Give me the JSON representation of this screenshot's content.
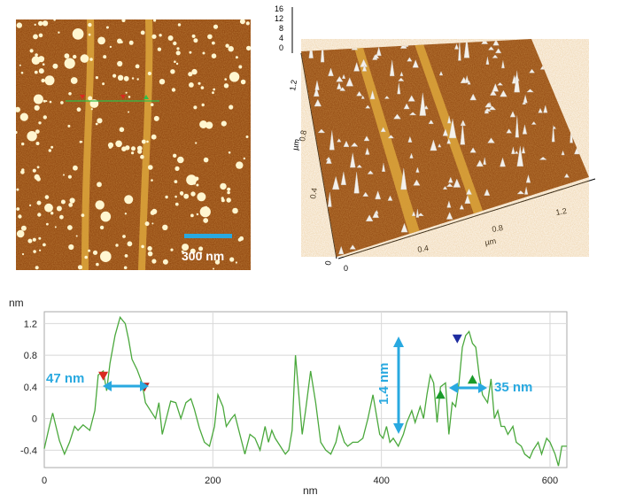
{
  "afm_2d": {
    "scale_bar_label": "300 nm",
    "colors": {
      "substrate": "#8a3e08",
      "substrate_light": "#b86a1c",
      "particle": "#fff6d0",
      "stripe": "#d9a23a",
      "scale_bar": "#29a9e0",
      "line_marker": "#2ec04a"
    }
  },
  "afm_3d": {
    "z_ticks": [
      "16",
      "12",
      "8",
      "4",
      "0"
    ],
    "left_ticks": [
      "1.2",
      "0.8",
      "0.4",
      "0"
    ],
    "left_unit": "µm",
    "bottom_ticks": [
      "0.4",
      "0.8",
      "1.2"
    ],
    "bottom_unit": "µm",
    "origin_label": "0"
  },
  "chart_data": {
    "type": "line",
    "title": "",
    "xlabel": "nm",
    "ylabel": "nm",
    "xlim": [
      0,
      620
    ],
    "ylim": [
      -0.62,
      1.35
    ],
    "x_ticks": [
      0,
      200,
      400,
      600
    ],
    "y_ticks": [
      1.2,
      0.8,
      0.4,
      0,
      -0.4
    ],
    "x_tick_labels": [
      "0",
      "200",
      "400",
      "600"
    ],
    "y_tick_labels": [
      "1.2",
      "0.8",
      "0.4",
      "0",
      "-0.4"
    ],
    "grid": true,
    "line_color": "#4aa83c",
    "series": [
      {
        "x": [
          0,
          6,
          10,
          18,
          24,
          30,
          36,
          40,
          46,
          54,
          60,
          64,
          70,
          74,
          78,
          84,
          90,
          96,
          100,
          104,
          110,
          116,
          120,
          126,
          132,
          136,
          140,
          146,
          150,
          156,
          162,
          168,
          174,
          178,
          184,
          190,
          196,
          202,
          206,
          212,
          216,
          222,
          226,
          232,
          238,
          244,
          250,
          256,
          262,
          266,
          270,
          274,
          280,
          286,
          290,
          294,
          298,
          302,
          306,
          310,
          316,
          322,
          328,
          334,
          340,
          346,
          350,
          356,
          360,
          366,
          372,
          378,
          384,
          390,
          394,
          398,
          402,
          406,
          410,
          414,
          420,
          426,
          430,
          436,
          440,
          446,
          450,
          454,
          458,
          462,
          466,
          470,
          476,
          480,
          484,
          488,
          492,
          496,
          500,
          504,
          508,
          512,
          516,
          520,
          526,
          530,
          534,
          538,
          542,
          546,
          550,
          556,
          560,
          566,
          570,
          576,
          580,
          586,
          590,
          596,
          600,
          606,
          610,
          614,
          620
        ],
        "y": [
          -0.38,
          -0.1,
          0.07,
          -0.28,
          -0.45,
          -0.3,
          -0.1,
          -0.15,
          -0.08,
          -0.15,
          0.1,
          0.55,
          0.6,
          0.35,
          0.7,
          1.05,
          1.28,
          1.2,
          1.0,
          0.75,
          0.62,
          0.45,
          0.2,
          0.1,
          0.0,
          0.2,
          -0.2,
          0.05,
          0.22,
          0.2,
          0.0,
          0.2,
          0.25,
          0.12,
          -0.12,
          -0.3,
          -0.35,
          -0.1,
          0.3,
          0.15,
          -0.1,
          0.0,
          0.05,
          -0.2,
          -0.45,
          -0.2,
          -0.25,
          -0.4,
          -0.1,
          -0.3,
          -0.15,
          -0.25,
          -0.35,
          -0.45,
          -0.4,
          -0.15,
          0.8,
          0.3,
          -0.2,
          0.1,
          0.6,
          0.2,
          -0.3,
          -0.4,
          -0.45,
          -0.3,
          -0.1,
          -0.3,
          -0.35,
          -0.3,
          -0.3,
          -0.25,
          0.0,
          0.3,
          0.05,
          -0.2,
          -0.25,
          -0.1,
          -0.3,
          -0.25,
          -0.35,
          -0.2,
          -0.05,
          0.1,
          -0.05,
          0.15,
          0.0,
          0.3,
          0.55,
          0.45,
          -0.05,
          0.4,
          0.45,
          -0.2,
          0.2,
          0.15,
          0.45,
          0.9,
          1.05,
          1.1,
          0.95,
          0.9,
          0.55,
          0.3,
          0.2,
          0.5,
          0.0,
          0.1,
          -0.1,
          -0.1,
          -0.2,
          -0.1,
          -0.3,
          -0.35,
          -0.45,
          -0.5,
          -0.4,
          -0.3,
          -0.45,
          -0.25,
          -0.3,
          -0.45,
          -0.6,
          -0.35,
          -0.35
        ]
      }
    ],
    "markers": [
      {
        "x": 70,
        "y": 0.48,
        "shape": "triangle-down",
        "color": "#d92a20"
      },
      {
        "x": 119,
        "y": 0.34,
        "shape": "triangle-down",
        "color": "#b4201a"
      },
      {
        "x": 490,
        "y": 0.95,
        "shape": "triangle-down",
        "color": "#1e2ca0"
      },
      {
        "x": 470,
        "y": 0.25,
        "shape": "triangle-up",
        "color": "#1a9b2a"
      },
      {
        "x": 508,
        "y": 0.44,
        "shape": "triangle-up",
        "color": "#1a9b2a"
      }
    ],
    "annotations": [
      {
        "text": "47 nm",
        "color": "#29a9e0"
      },
      {
        "text": "1.4 nm",
        "color": "#29a9e0"
      },
      {
        "text": "35 nm",
        "color": "#29a9e0"
      }
    ]
  }
}
